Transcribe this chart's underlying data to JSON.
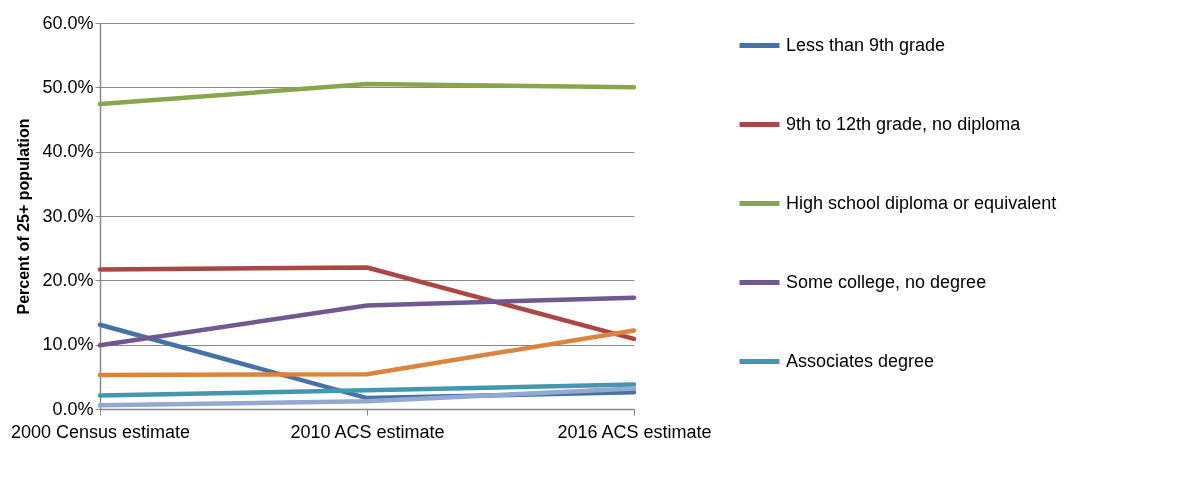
{
  "chart_data": {
    "type": "line",
    "ylabel": "Percent of 25+ population",
    "categories": [
      "2000 Census estimate",
      "2010 ACS estimate",
      "2016 ACS estimate"
    ],
    "series": [
      {
        "name": "Less than 9th grade",
        "color": "#4572a7",
        "values": [
          13.1,
          1.7,
          2.6
        ]
      },
      {
        "name": "9th to 12th grade, no diploma",
        "color": "#aa4643",
        "values": [
          21.7,
          22.0,
          10.9
        ]
      },
      {
        "name": "High school diploma or equivalent",
        "color": "#89a54e",
        "values": [
          47.4,
          50.5,
          50.0
        ]
      },
      {
        "name": "Some college, no degree",
        "color": "#71588f",
        "values": [
          9.9,
          16.1,
          17.3
        ]
      },
      {
        "name": "Associates degree",
        "color": "#4198af",
        "values": [
          2.1,
          2.9,
          3.8
        ]
      },
      {
        "color": "#db843d",
        "values": [
          5.3,
          5.4,
          12.2
        ]
      },
      {
        "color": "#93a9cf",
        "values": [
          0.6,
          1.2,
          3.2
        ]
      }
    ],
    "ylim": [
      0,
      60
    ],
    "yticks": [
      {
        "value": 0,
        "label": "0.0%"
      },
      {
        "value": 10,
        "label": "10.0%"
      },
      {
        "value": 20,
        "label": "20.0%"
      },
      {
        "value": 30,
        "label": "30.0%"
      },
      {
        "value": 40,
        "label": "40.0%"
      },
      {
        "value": 50,
        "label": "50.0%"
      },
      {
        "value": 60,
        "label": "60.0%"
      }
    ],
    "grid": "y",
    "legend": "right",
    "line_style": "solid",
    "marker": "none"
  }
}
